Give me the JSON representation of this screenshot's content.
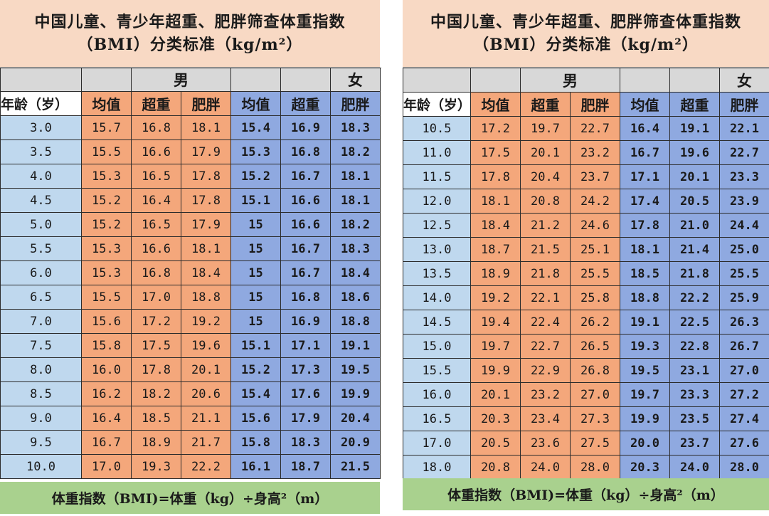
{
  "left": {
    "title_line1": "中国儿童、青少年超重、肥胖筛查体重指数",
    "title_line2": "（BMI）分类标准（kg/m²）",
    "group_male": "男",
    "group_female": "女",
    "headers": [
      "年龄（岁）",
      "均值",
      "超重",
      "肥胖",
      "均值",
      "超重",
      "肥胖"
    ],
    "rows": [
      [
        "3.0",
        "15.7",
        "16.8",
        "18.1",
        "15.4",
        "16.9",
        "18.3"
      ],
      [
        "3.5",
        "15.5",
        "16.6",
        "17.9",
        "15.3",
        "16.8",
        "18.2"
      ],
      [
        "4.0",
        "15.3",
        "16.5",
        "17.8",
        "15.2",
        "16.7",
        "18.1"
      ],
      [
        "4.5",
        "15.2",
        "16.4",
        "17.8",
        "15.1",
        "16.6",
        "18.1"
      ],
      [
        "5.0",
        "15.2",
        "16.5",
        "17.9",
        "15",
        "16.6",
        "18.2"
      ],
      [
        "5.5",
        "15.3",
        "16.6",
        "18.1",
        "15",
        "16.7",
        "18.3"
      ],
      [
        "6.0",
        "15.3",
        "16.8",
        "18.4",
        "15",
        "16.7",
        "18.4"
      ],
      [
        "6.5",
        "15.5",
        "17.0",
        "18.8",
        "15",
        "16.8",
        "18.6"
      ],
      [
        "7.0",
        "15.6",
        "17.2",
        "19.2",
        "15",
        "16.9",
        "18.8"
      ],
      [
        "7.5",
        "15.8",
        "17.5",
        "19.6",
        "15.1",
        "17.1",
        "19.1"
      ],
      [
        "8.0",
        "16.0",
        "17.8",
        "20.1",
        "15.2",
        "17.3",
        "19.5"
      ],
      [
        "8.5",
        "16.2",
        "18.2",
        "20.6",
        "15.4",
        "17.6",
        "19.9"
      ],
      [
        "9.0",
        "16.4",
        "18.5",
        "21.1",
        "15.6",
        "17.9",
        "20.4"
      ],
      [
        "9.5",
        "16.7",
        "18.9",
        "21.7",
        "15.8",
        "18.3",
        "20.9"
      ],
      [
        "10.0",
        "17.0",
        "19.3",
        "22.2",
        "16.1",
        "18.7",
        "21.5"
      ]
    ],
    "footer": "体重指数（BMI)=体重（kg）÷身高²（m）"
  },
  "right": {
    "title_line1": "中国儿童、青少年超重、肥胖筛查体重指数",
    "title_line2": "（BMI）分类标准（kg/m²）",
    "group_male": "男",
    "group_female": "女",
    "headers": [
      "年龄（岁）",
      "均值",
      "超重",
      "肥胖",
      "均值",
      "超重",
      "肥胖"
    ],
    "rows": [
      [
        "10.5",
        "17.2",
        "19.7",
        "22.7",
        "16.4",
        "19.1",
        "22.1"
      ],
      [
        "11.0",
        "17.5",
        "20.1",
        "23.2",
        "16.7",
        "19.6",
        "22.7"
      ],
      [
        "11.5",
        "17.8",
        "20.4",
        "23.7",
        "17.1",
        "20.1",
        "23.3"
      ],
      [
        "12.0",
        "18.1",
        "20.8",
        "24.2",
        "17.4",
        "20.5",
        "23.9"
      ],
      [
        "12.5",
        "18.4",
        "21.2",
        "24.6",
        "17.8",
        "21.0",
        "24.4"
      ],
      [
        "13.0",
        "18.7",
        "21.5",
        "25.1",
        "18.1",
        "21.4",
        "25.0"
      ],
      [
        "13.5",
        "18.9",
        "21.8",
        "25.5",
        "18.5",
        "21.8",
        "25.5"
      ],
      [
        "14.0",
        "19.2",
        "22.1",
        "25.8",
        "18.8",
        "22.2",
        "25.9"
      ],
      [
        "14.5",
        "19.4",
        "22.4",
        "26.2",
        "19.1",
        "22.5",
        "26.3"
      ],
      [
        "15.0",
        "19.7",
        "22.7",
        "26.5",
        "19.3",
        "22.8",
        "26.7"
      ],
      [
        "15.5",
        "19.9",
        "22.9",
        "26.8",
        "19.5",
        "23.1",
        "27.0"
      ],
      [
        "16.0",
        "20.1",
        "23.2",
        "27.0",
        "19.7",
        "23.3",
        "27.2"
      ],
      [
        "16.5",
        "20.3",
        "23.4",
        "27.3",
        "19.9",
        "23.5",
        "27.4"
      ],
      [
        "17.0",
        "20.5",
        "23.6",
        "27.5",
        "20.0",
        "23.7",
        "27.6"
      ],
      [
        "18.0",
        "20.8",
        "24.0",
        "28.0",
        "20.3",
        "24.0",
        "28.0"
      ]
    ],
    "footer": "体重指数（BMI)=体重（kg）÷身高²（m）"
  }
}
